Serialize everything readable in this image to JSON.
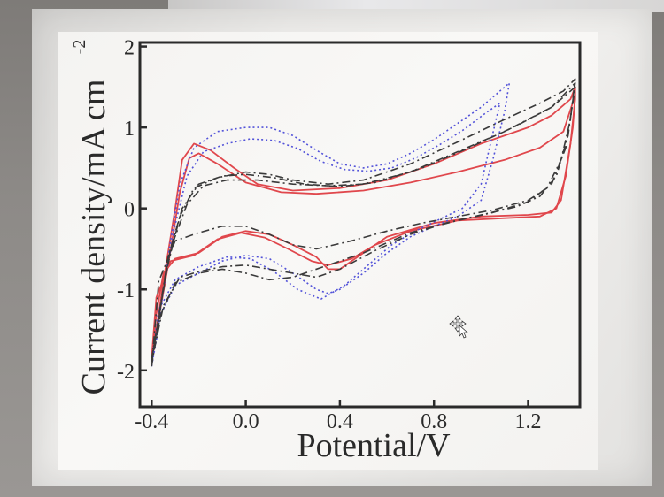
{
  "chart_data": {
    "type": "line",
    "xlabel": "Potential/V",
    "ylabel": "Current density/mA cm",
    "ylabel_superscript": "-2",
    "xlim": [
      -0.45,
      1.42
    ],
    "ylim": [
      -2.45,
      2.05
    ],
    "x_ticks": [
      {
        "value": -0.4,
        "label": "-0.4"
      },
      {
        "value": 0.0,
        "label": "0.0"
      },
      {
        "value": 0.4,
        "label": "0.4"
      },
      {
        "value": 0.8,
        "label": "0.8"
      },
      {
        "value": 1.2,
        "label": "1.2"
      }
    ],
    "y_ticks": [
      {
        "value": 2,
        "label": "2"
      },
      {
        "value": 1,
        "label": "1"
      },
      {
        "value": 0,
        "label": "0"
      },
      {
        "value": -1,
        "label": "-1"
      },
      {
        "value": -2,
        "label": "-2"
      }
    ],
    "grid": false,
    "series": [
      {
        "color": "#e0474c",
        "dash": "solid",
        "x": [
          -0.4,
          -0.35,
          -0.3,
          -0.27,
          -0.22,
          -0.15,
          -0.05,
          0.05,
          0.2,
          0.4,
          0.6,
          0.8,
          1.0,
          1.2,
          1.3,
          1.38,
          1.4,
          1.4,
          1.38,
          1.34,
          1.3,
          1.2,
          1.0,
          0.8,
          0.6,
          0.5,
          0.4,
          0.35,
          0.3,
          0.2,
          0.1,
          0.0,
          -0.1,
          -0.2,
          -0.3,
          -0.35,
          -0.38,
          -0.4
        ],
        "y": [
          -1.9,
          -0.9,
          0.0,
          0.6,
          0.8,
          0.72,
          0.5,
          0.3,
          0.22,
          0.25,
          0.35,
          0.55,
          0.8,
          1.0,
          1.15,
          1.35,
          1.5,
          1.35,
          0.8,
          0.1,
          -0.05,
          -0.08,
          -0.1,
          -0.18,
          -0.35,
          -0.55,
          -0.75,
          -0.75,
          -0.6,
          -0.45,
          -0.32,
          -0.28,
          -0.35,
          -0.55,
          -0.62,
          -0.8,
          -1.3,
          -1.9
        ]
      },
      {
        "color": "#e0474c",
        "dash": "solid",
        "x": [
          -0.4,
          -0.33,
          -0.28,
          -0.24,
          -0.2,
          -0.12,
          0.0,
          0.15,
          0.3,
          0.5,
          0.7,
          0.9,
          1.1,
          1.25,
          1.35,
          1.4,
          1.39,
          1.36,
          1.32,
          1.25,
          1.1,
          0.9,
          0.7,
          0.55,
          0.45,
          0.35,
          0.28,
          0.18,
          0.08,
          -0.02,
          -0.12,
          -0.22,
          -0.32,
          -0.38,
          -0.4
        ],
        "y": [
          -1.85,
          -0.7,
          0.2,
          0.62,
          0.68,
          0.55,
          0.32,
          0.2,
          0.18,
          0.22,
          0.32,
          0.45,
          0.6,
          0.75,
          0.95,
          1.4,
          1.0,
          0.4,
          0.0,
          -0.1,
          -0.12,
          -0.15,
          -0.28,
          -0.45,
          -0.62,
          -0.7,
          -0.65,
          -0.5,
          -0.36,
          -0.3,
          -0.38,
          -0.58,
          -0.65,
          -1.1,
          -1.85
        ]
      },
      {
        "color": "#5252d9",
        "dash": "dotted",
        "x": [
          -0.4,
          -0.36,
          -0.32,
          -0.28,
          -0.22,
          -0.12,
          0.0,
          0.1,
          0.2,
          0.3,
          0.4,
          0.5,
          0.6,
          0.7,
          0.8,
          0.9,
          1.0,
          1.1,
          1.12,
          1.1,
          1.05,
          1.0,
          0.9,
          0.8,
          0.7,
          0.6,
          0.5,
          0.4,
          0.35,
          0.3,
          0.2,
          0.1,
          0.0,
          -0.1,
          -0.2,
          -0.3,
          -0.36,
          -0.4
        ],
        "y": [
          -1.95,
          -1.2,
          -0.4,
          0.3,
          0.75,
          0.95,
          1.0,
          1.0,
          0.9,
          0.72,
          0.55,
          0.5,
          0.55,
          0.68,
          0.85,
          1.05,
          1.25,
          1.5,
          1.55,
          1.2,
          0.6,
          0.1,
          -0.1,
          -0.22,
          -0.35,
          -0.55,
          -0.8,
          -1.0,
          -1.05,
          -1.0,
          -0.8,
          -0.62,
          -0.58,
          -0.65,
          -0.8,
          -0.95,
          -1.3,
          -1.95
        ]
      },
      {
        "color": "#5252d9",
        "dash": "dotted",
        "x": [
          -0.4,
          -0.35,
          -0.3,
          -0.25,
          -0.18,
          -0.08,
          0.02,
          0.12,
          0.22,
          0.32,
          0.42,
          0.52,
          0.62,
          0.72,
          0.82,
          0.92,
          1.02,
          1.08,
          1.0,
          0.92,
          0.82,
          0.72,
          0.62,
          0.52,
          0.42,
          0.32,
          0.22,
          0.12,
          0.02,
          -0.08,
          -0.2,
          -0.3,
          -0.37,
          -0.4
        ],
        "y": [
          -1.9,
          -1.0,
          -0.2,
          0.4,
          0.7,
          0.8,
          0.86,
          0.84,
          0.74,
          0.58,
          0.48,
          0.46,
          0.5,
          0.62,
          0.78,
          0.96,
          1.18,
          1.3,
          0.3,
          0.0,
          -0.14,
          -0.28,
          -0.45,
          -0.7,
          -0.95,
          -1.12,
          -1.0,
          -0.78,
          -0.62,
          -0.6,
          -0.72,
          -0.88,
          -1.25,
          -1.9
        ]
      },
      {
        "color": "#3a3a3a",
        "dash": "dashdot",
        "x": [
          -0.4,
          -0.34,
          -0.28,
          -0.22,
          -0.12,
          0.0,
          0.1,
          0.2,
          0.35,
          0.5,
          0.7,
          0.9,
          1.1,
          1.25,
          1.35,
          1.4,
          1.38,
          1.34,
          1.28,
          1.2,
          1.05,
          0.9,
          0.75,
          0.6,
          0.45,
          0.3,
          0.2,
          0.1,
          0.0,
          -0.1,
          -0.2,
          -0.3,
          -0.37,
          -0.4
        ],
        "y": [
          -1.95,
          -0.8,
          -0.1,
          0.25,
          0.38,
          0.45,
          0.42,
          0.35,
          0.3,
          0.35,
          0.55,
          0.82,
          1.1,
          1.3,
          1.45,
          1.6,
          1.1,
          0.6,
          0.25,
          0.1,
          -0.02,
          -0.1,
          -0.18,
          -0.28,
          -0.4,
          -0.5,
          -0.45,
          -0.32,
          -0.22,
          -0.22,
          -0.3,
          -0.4,
          -0.9,
          -1.95
        ]
      },
      {
        "color": "#3a3a3a",
        "dash": "dashdot",
        "x": [
          -0.4,
          -0.33,
          -0.27,
          -0.2,
          -0.1,
          0.0,
          0.12,
          0.25,
          0.4,
          0.55,
          0.75,
          0.95,
          1.15,
          1.3,
          1.4,
          1.37,
          1.32,
          1.25,
          1.15,
          1.0,
          0.85,
          0.7,
          0.55,
          0.4,
          0.3,
          0.2,
          0.1,
          0.0,
          -0.1,
          -0.2,
          -0.28,
          -0.35,
          -0.4
        ],
        "y": [
          -1.9,
          -0.6,
          0.0,
          0.3,
          0.4,
          0.42,
          0.38,
          0.3,
          0.27,
          0.32,
          0.5,
          0.75,
          1.02,
          1.25,
          1.55,
          0.9,
          0.4,
          0.15,
          0.02,
          -0.08,
          -0.18,
          -0.32,
          -0.52,
          -0.75,
          -0.85,
          -0.8,
          -0.75,
          -0.7,
          -0.72,
          -0.78,
          -0.85,
          -1.2,
          -1.9
        ]
      },
      {
        "color": "#3a3a3a",
        "dash": "dashdot",
        "x": [
          -0.4,
          -0.32,
          -0.25,
          -0.18,
          -0.08,
          0.05,
          0.2,
          0.35,
          0.5,
          0.7,
          0.9,
          1.1,
          1.3,
          1.4,
          1.36,
          1.3,
          1.2,
          1.05,
          0.9,
          0.7,
          0.5,
          0.35,
          0.2,
          0.1,
          0.0,
          -0.1,
          -0.2,
          -0.3,
          -0.36,
          -0.4
        ],
        "y": [
          -1.85,
          -0.5,
          0.05,
          0.28,
          0.35,
          0.35,
          0.3,
          0.28,
          0.3,
          0.45,
          0.7,
          0.95,
          1.25,
          1.5,
          0.75,
          0.3,
          0.08,
          -0.05,
          -0.15,
          -0.3,
          -0.55,
          -0.7,
          -0.85,
          -0.88,
          -0.8,
          -0.75,
          -0.8,
          -0.92,
          -1.3,
          -1.85
        ]
      }
    ]
  },
  "cursor": {
    "icon": "move-cursor-icon"
  }
}
